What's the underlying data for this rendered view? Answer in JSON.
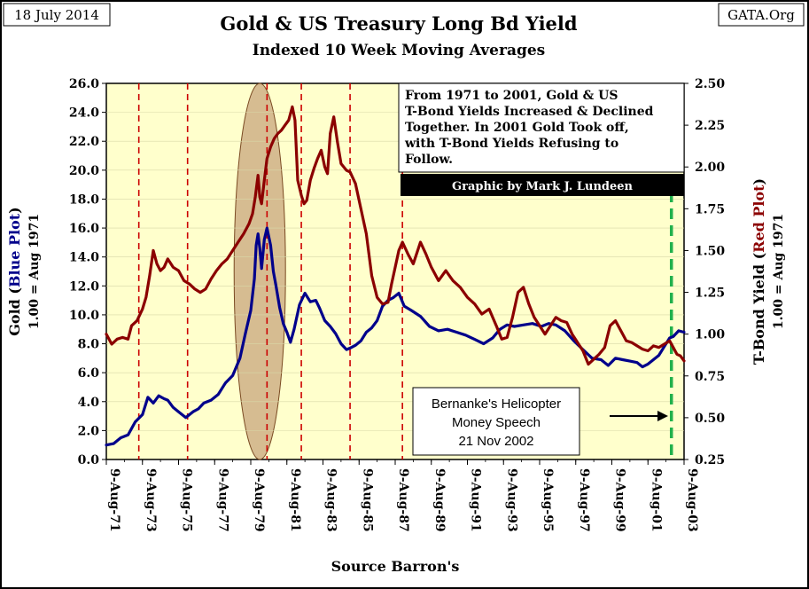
{
  "corner_labels": {
    "date": "18 July 2014",
    "source_site": "GATA.Org"
  },
  "chart_data": {
    "type": "line",
    "title": "Gold & US Treasury Long Bd Yield",
    "subtitle": "Indexed 10 Week Moving Averages",
    "xlabel": "Source Barron's",
    "ylabel_left": {
      "part1": "Gold (",
      "part2": "Blue Plot",
      "part3": ")",
      "line2": "1.00 = Aug 1971"
    },
    "ylabel_right": {
      "part1": "T-Bond Yield (",
      "part2": "Red Plot",
      "part3": ")",
      "line2": "1.00 = Aug 1971"
    },
    "ylim_left": [
      0,
      26
    ],
    "ylim_right": [
      0.25,
      2.5
    ],
    "x_range": [
      1971.6,
      2003.6
    ],
    "left_ticks": [
      "0.0",
      "2.0",
      "4.0",
      "6.0",
      "8.0",
      "10.0",
      "12.0",
      "14.0",
      "16.0",
      "18.0",
      "20.0",
      "22.0",
      "24.0",
      "26.0"
    ],
    "right_ticks": [
      "0.25",
      "0.50",
      "0.75",
      "1.00",
      "1.25",
      "1.50",
      "1.75",
      "2.00",
      "2.25",
      "2.50"
    ],
    "x_tick_labels": [
      "9-Aug-71",
      "9-Aug-73",
      "9-Aug-75",
      "9-Aug-77",
      "9-Aug-79",
      "9-Aug-81",
      "9-Aug-83",
      "9-Aug-85",
      "9-Aug-87",
      "9-Aug-89",
      "9-Aug-91",
      "9-Aug-93",
      "9-Aug-95",
      "9-Aug-97",
      "9-Aug-99",
      "9-Aug-01",
      "9-Aug-03"
    ],
    "x_tick_years": [
      1971.6,
      1973.6,
      1975.6,
      1977.6,
      1979.6,
      1981.6,
      1983.6,
      1985.6,
      1987.6,
      1989.6,
      1991.6,
      1993.6,
      1995.6,
      1997.6,
      1999.6,
      2001.6,
      2003.6
    ],
    "vertical_markers": [
      1973.4,
      1976.1,
      1980.5,
      1982.4,
      1985.1,
      1988.0
    ],
    "highlight_marker": 2002.9,
    "highlight_ellipse_center": 1980.1,
    "series": [
      {
        "name": "Gold",
        "axis": "left",
        "color": "#00008b",
        "x": [
          1971.6,
          1972.0,
          1972.4,
          1972.8,
          1973.2,
          1973.6,
          1973.9,
          1974.2,
          1974.5,
          1974.8,
          1975.0,
          1975.3,
          1975.6,
          1976.0,
          1976.4,
          1976.7,
          1977.0,
          1977.4,
          1977.8,
          1978.2,
          1978.6,
          1979.0,
          1979.3,
          1979.6,
          1979.8,
          1979.9,
          1980.0,
          1980.1,
          1980.2,
          1980.35,
          1980.5,
          1980.7,
          1980.85,
          1981.0,
          1981.2,
          1981.4,
          1981.6,
          1981.8,
          1982.0,
          1982.3,
          1982.6,
          1982.9,
          1983.2,
          1983.4,
          1983.7,
          1984.0,
          1984.3,
          1984.6,
          1984.9,
          1985.1,
          1985.4,
          1985.7,
          1986.0,
          1986.3,
          1986.6,
          1986.9,
          1987.2,
          1987.5,
          1987.8,
          1988.1,
          1988.5,
          1989.0,
          1989.5,
          1990.0,
          1990.5,
          1991.0,
          1991.5,
          1992.0,
          1992.5,
          1993.0,
          1993.4,
          1993.8,
          1994.2,
          1994.7,
          1995.2,
          1995.7,
          1996.1,
          1996.5,
          1997.0,
          1997.5,
          1998.0,
          1998.5,
          1999.0,
          1999.4,
          1999.8,
          2000.2,
          2000.6,
          2001.0,
          2001.3,
          2001.6,
          2001.9,
          2002.2,
          2002.5,
          2002.8,
          2003.0,
          2003.3,
          2003.6
        ],
        "values": [
          1.0,
          1.1,
          1.5,
          1.7,
          2.6,
          3.1,
          4.3,
          3.9,
          4.4,
          4.2,
          4.1,
          3.6,
          3.3,
          2.9,
          3.3,
          3.5,
          3.9,
          4.1,
          4.5,
          5.3,
          5.8,
          7.0,
          8.7,
          10.3,
          12.5,
          14.8,
          15.6,
          14.6,
          13.2,
          15.2,
          16.0,
          14.8,
          13.0,
          12.0,
          10.5,
          9.4,
          8.8,
          8.1,
          9.0,
          10.7,
          11.5,
          10.9,
          11.0,
          10.5,
          9.6,
          9.2,
          8.7,
          8.0,
          7.6,
          7.7,
          7.9,
          8.2,
          8.8,
          9.1,
          9.6,
          10.6,
          11.0,
          11.2,
          11.5,
          10.6,
          10.3,
          9.9,
          9.2,
          8.9,
          9.0,
          8.8,
          8.6,
          8.3,
          8.0,
          8.4,
          9.0,
          9.3,
          9.2,
          9.3,
          9.4,
          9.2,
          9.4,
          9.3,
          8.9,
          8.2,
          7.6,
          7.0,
          6.9,
          6.5,
          7.0,
          6.9,
          6.8,
          6.7,
          6.4,
          6.6,
          6.9,
          7.2,
          7.8,
          8.4,
          8.5,
          8.9,
          8.8
        ]
      },
      {
        "name": "T-Bond Yield",
        "axis": "right",
        "color": "#8b0000",
        "x": [
          1971.6,
          1971.9,
          1972.2,
          1972.5,
          1972.8,
          1973.0,
          1973.3,
          1973.6,
          1973.8,
          1974.0,
          1974.2,
          1974.4,
          1974.6,
          1974.8,
          1975.0,
          1975.3,
          1975.6,
          1975.9,
          1976.2,
          1976.5,
          1976.8,
          1977.1,
          1977.4,
          1977.7,
          1978.0,
          1978.3,
          1978.6,
          1978.9,
          1979.2,
          1979.5,
          1979.7,
          1979.85,
          1980.0,
          1980.1,
          1980.2,
          1980.35,
          1980.5,
          1980.7,
          1980.9,
          1981.1,
          1981.3,
          1981.5,
          1981.7,
          1981.9,
          1982.05,
          1982.2,
          1982.4,
          1982.55,
          1982.7,
          1982.9,
          1983.1,
          1983.3,
          1983.5,
          1983.7,
          1983.85,
          1984.0,
          1984.2,
          1984.4,
          1984.6,
          1984.9,
          1985.1,
          1985.4,
          1985.7,
          1986.0,
          1986.3,
          1986.6,
          1986.9,
          1987.2,
          1987.4,
          1987.6,
          1987.8,
          1988.0,
          1988.3,
          1988.6,
          1989.0,
          1989.3,
          1989.6,
          1990.0,
          1990.4,
          1990.8,
          1991.2,
          1991.6,
          1992.0,
          1992.4,
          1992.8,
          1993.2,
          1993.5,
          1993.8,
          1994.1,
          1994.4,
          1994.7,
          1995.0,
          1995.3,
          1995.6,
          1995.9,
          1996.2,
          1996.5,
          1996.8,
          1997.1,
          1997.4,
          1997.7,
          1998.0,
          1998.3,
          1998.6,
          1998.9,
          1999.2,
          1999.5,
          1999.8,
          2000.1,
          2000.4,
          2000.7,
          2001.0,
          2001.3,
          2001.6,
          2001.9,
          2002.2,
          2002.5,
          2002.8,
          2003.0,
          2003.2,
          2003.4,
          2003.6
        ],
        "values": [
          1.0,
          0.94,
          0.97,
          0.98,
          0.97,
          1.05,
          1.08,
          1.15,
          1.22,
          1.35,
          1.5,
          1.42,
          1.38,
          1.4,
          1.45,
          1.4,
          1.38,
          1.32,
          1.3,
          1.27,
          1.25,
          1.27,
          1.33,
          1.38,
          1.42,
          1.45,
          1.5,
          1.55,
          1.6,
          1.66,
          1.72,
          1.82,
          1.95,
          1.82,
          1.78,
          1.92,
          2.05,
          2.12,
          2.17,
          2.2,
          2.22,
          2.25,
          2.28,
          2.36,
          2.28,
          1.92,
          1.83,
          1.78,
          1.8,
          1.92,
          1.99,
          2.05,
          2.1,
          2.0,
          1.96,
          2.2,
          2.3,
          2.15,
          2.02,
          1.98,
          1.97,
          1.9,
          1.75,
          1.6,
          1.35,
          1.22,
          1.18,
          1.19,
          1.3,
          1.4,
          1.5,
          1.55,
          1.48,
          1.42,
          1.55,
          1.48,
          1.4,
          1.32,
          1.38,
          1.32,
          1.28,
          1.22,
          1.18,
          1.12,
          1.15,
          1.05,
          0.97,
          0.98,
          1.1,
          1.25,
          1.28,
          1.18,
          1.1,
          1.05,
          1.0,
          1.05,
          1.1,
          1.08,
          1.07,
          1.0,
          0.95,
          0.9,
          0.82,
          0.85,
          0.88,
          0.92,
          1.05,
          1.08,
          1.02,
          0.96,
          0.95,
          0.93,
          0.91,
          0.9,
          0.93,
          0.92,
          0.94,
          0.96,
          0.92,
          0.88,
          0.87,
          0.84
        ]
      }
    ],
    "annotations": {
      "text_box": [
        "From 1971 to 2001, Gold & US",
        "T-Bond Yields Increased & Declined",
        "Together.  In 2001 Gold Took off,",
        "with T-Bond Yields Refusing to",
        "Follow."
      ],
      "credit": "Graphic by Mark J. Lundeen",
      "callout": [
        "Bernanke's Helicopter",
        "Money Speech",
        "21 Nov 2002"
      ]
    }
  }
}
